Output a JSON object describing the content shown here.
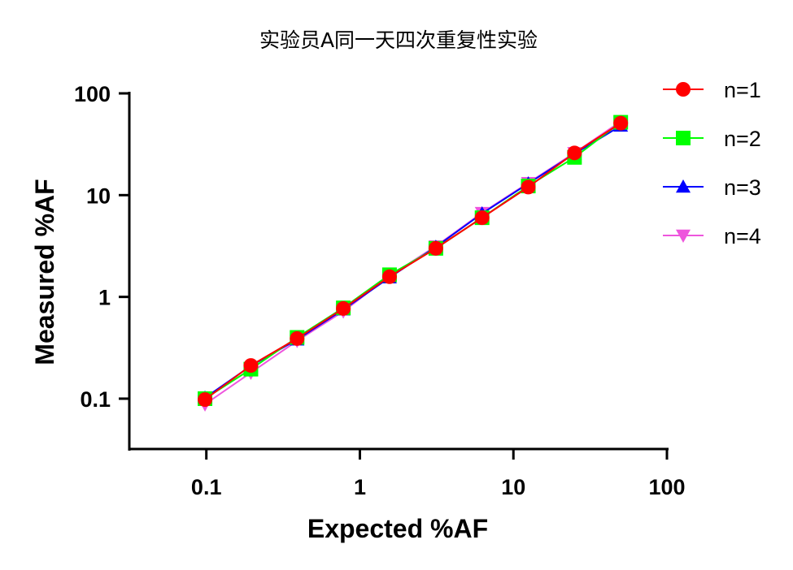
{
  "chart_data": {
    "type": "line",
    "title": "实验员A同一天四次重复性实验",
    "xlabel": "Expected %AF",
    "ylabel": "Measured %AF",
    "xscale": "log",
    "yscale": "log",
    "xlim": [
      0.0315,
      100
    ],
    "ylim": [
      0.032,
      100
    ],
    "xticks": [
      0.1,
      1,
      10,
      100
    ],
    "xtick_labels": [
      "0.1",
      "1",
      "10",
      "100"
    ],
    "yticks": [
      0.1,
      1,
      10,
      100
    ],
    "ytick_labels": [
      "0.1",
      "1",
      "10",
      "100"
    ],
    "grid": false,
    "legend_position": "right",
    "x": [
      0.098,
      0.195,
      0.39,
      0.78,
      1.56,
      3.125,
      6.25,
      12.5,
      25,
      50
    ],
    "series": [
      {
        "name": "n=1",
        "color": "#ff0000",
        "marker": "circle",
        "values": [
          0.098,
          0.212,
          0.39,
          0.77,
          1.58,
          3.0,
          6.0,
          12.0,
          26,
          51
        ]
      },
      {
        "name": "n=2",
        "color": "#00ff00",
        "marker": "square",
        "values": [
          0.1,
          0.195,
          0.4,
          0.78,
          1.65,
          3.0,
          6.0,
          12.3,
          23.5,
          52
        ]
      },
      {
        "name": "n=3",
        "color": "#0000ff",
        "marker": "triangle-up",
        "values": [
          0.102,
          0.21,
          0.38,
          0.75,
          1.55,
          3.1,
          6.6,
          13,
          25.5,
          48
        ]
      },
      {
        "name": "n=4",
        "color": "#ee55dd",
        "marker": "triangle-down",
        "values": [
          0.088,
          0.18,
          0.37,
          0.72,
          1.6,
          3.15,
          6.7,
          13.2,
          26,
          53
        ]
      }
    ]
  }
}
